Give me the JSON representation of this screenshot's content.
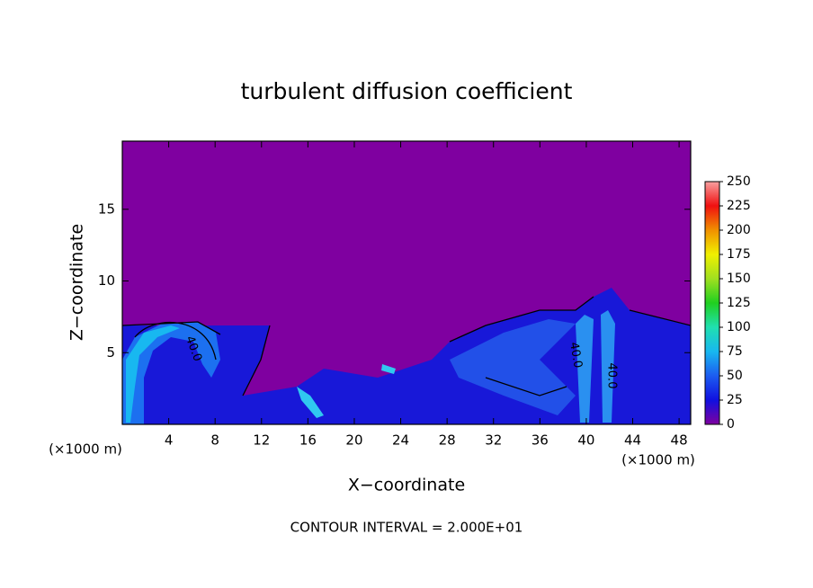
{
  "chart_data": {
    "type": "contour",
    "title": "turbulent diffusion coefficient",
    "x_label": "X−coordinate",
    "y_label": "Z−coordinate",
    "x_unit_label": "(×1000 m)",
    "footer": "CONTOUR INTERVAL = 2.000E+01",
    "xlim": [
      0,
      49
    ],
    "xticks": [
      4,
      8,
      12,
      16,
      20,
      24,
      28,
      32,
      36,
      40,
      44,
      48
    ],
    "ylim": [
      0,
      19.75
    ],
    "yticks": [
      5,
      10,
      15
    ],
    "background_color": "#7f00a0",
    "contour_labels": [
      "40.0",
      "40.0",
      "40.0"
    ],
    "colorbar": {
      "lim": [
        0,
        250
      ],
      "ticks": [
        0,
        25,
        50,
        75,
        100,
        125,
        150,
        175,
        200,
        225,
        250
      ],
      "colors": [
        "#7f00a0",
        "#1010e0",
        "#1c5cf0",
        "#18b8f0",
        "#20e0b0",
        "#20d020",
        "#a0e020",
        "#f0f000",
        "#f09000",
        "#f01010",
        "#f8a0a0"
      ]
    }
  }
}
